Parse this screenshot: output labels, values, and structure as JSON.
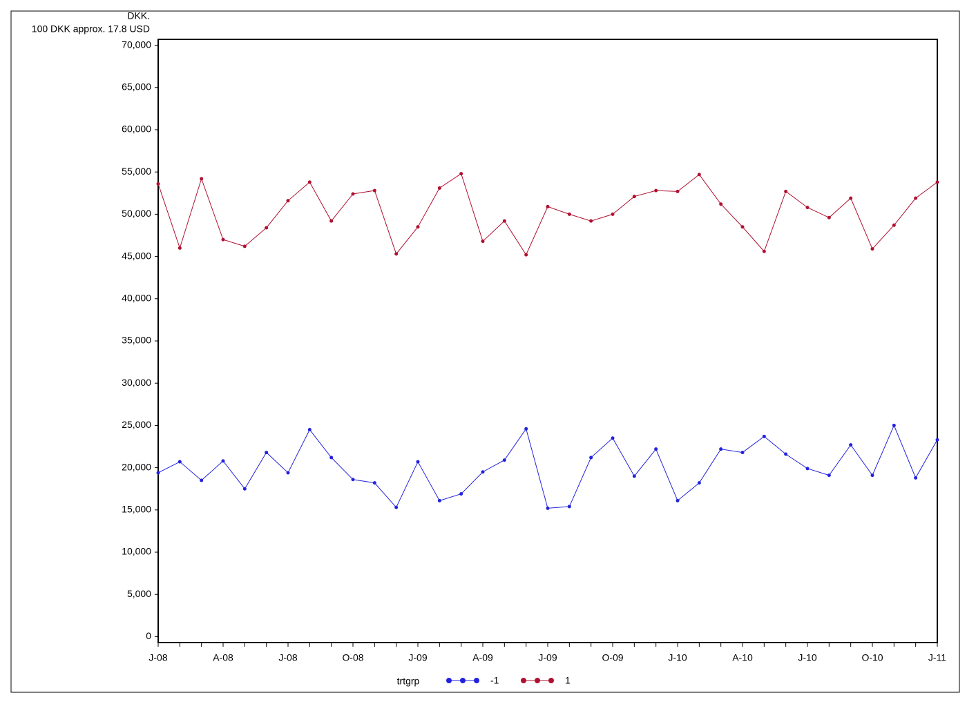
{
  "chart_data": {
    "type": "line",
    "y_label_lines": [
      "DKK.",
      "100 DKK approx. 17.8 USD"
    ],
    "categories": [
      "J-08",
      null,
      null,
      "A-08",
      null,
      null,
      "J-08",
      null,
      null,
      "O-08",
      null,
      null,
      "J-09",
      null,
      null,
      "A-09",
      null,
      null,
      "J-09",
      null,
      null,
      "O-09",
      null,
      null,
      "J-10",
      null,
      null,
      "A-10",
      null,
      null,
      "J-10",
      null,
      null,
      "O-10",
      null,
      null,
      "J-11"
    ],
    "legend_title": "trtgrp",
    "legend_position": "bottom",
    "series": [
      {
        "name": "-1",
        "color": "#2222dd",
        "values": [
          19400,
          20700,
          18500,
          20800,
          17500,
          21800,
          19400,
          24500,
          21200,
          18600,
          18200,
          15300,
          20700,
          16100,
          16900,
          19500,
          20900,
          24600,
          15200,
          15400,
          21200,
          23500,
          19000,
          22200,
          16100,
          18200,
          22200,
          21800,
          23700,
          21600,
          19900,
          19100,
          22700,
          19100,
          25000,
          18800,
          23300
        ]
      },
      {
        "name": "1",
        "color": "#b01030",
        "values": [
          53600,
          46000,
          54200,
          47000,
          46200,
          48400,
          51600,
          53800,
          49200,
          52400,
          52800,
          45300,
          48500,
          53100,
          54800,
          46800,
          49200,
          45200,
          50900,
          50000,
          49200,
          50000,
          52100,
          52800,
          52700,
          54700,
          51200,
          48500,
          45600,
          52700,
          50800,
          49600,
          51900,
          45900,
          48700,
          51900,
          53800
        ]
      }
    ],
    "ylim": [
      -700,
      70700
    ],
    "yticks": [
      0,
      {
        "value": 5000,
        "label": "5,000"
      },
      {
        "value": 10000,
        "label": "10,000"
      },
      {
        "value": 15000,
        "label": "15,000"
      },
      {
        "value": 20000,
        "label": "20,000"
      },
      {
        "value": 25000,
        "label": "25,000"
      },
      {
        "value": 30000,
        "label": "30,000"
      },
      {
        "value": 35000,
        "label": "35,000"
      },
      {
        "value": 40000,
        "label": "40,000"
      },
      {
        "value": 45000,
        "label": "45,000"
      },
      {
        "value": 50000,
        "label": "50,000"
      },
      {
        "value": 55000,
        "label": "55,000"
      },
      {
        "value": 60000,
        "label": "60,000"
      },
      {
        "value": 65000,
        "label": "65,000"
      },
      {
        "value": 70000,
        "label": "70,000"
      }
    ],
    "grid": false
  }
}
